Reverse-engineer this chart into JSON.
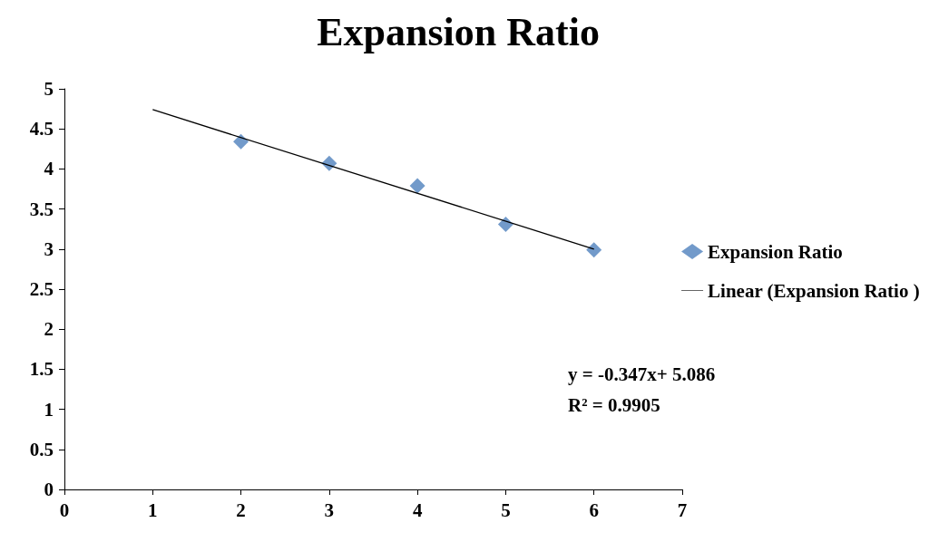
{
  "chart_data": {
    "type": "scatter",
    "title": "Expansion Ratio",
    "xlim": [
      0,
      7
    ],
    "xticks": [
      0,
      1,
      2,
      3,
      4,
      5,
      6,
      7
    ],
    "ylim": [
      0,
      5
    ],
    "yticks": [
      0,
      0.5,
      1,
      1.5,
      2,
      2.5,
      3,
      3.5,
      4,
      4.5,
      5
    ],
    "grid": false,
    "legend": "right",
    "series": [
      {
        "name": "Expansion Ratio",
        "marker": "diamond",
        "color": "#4f81bd",
        "x": [
          2,
          3,
          4,
          5,
          6
        ],
        "values": [
          4.34,
          4.07,
          3.79,
          3.31,
          2.99
        ]
      },
      {
        "name": "Linear (Expansion Ratio )",
        "type": "line",
        "marker": "none",
        "color": "#000000",
        "x": [
          1,
          6
        ],
        "values": [
          4.74,
          3.0
        ]
      }
    ],
    "annotations": [
      "y = -0.347x+ 5.086",
      "R² = 0.9905"
    ]
  }
}
